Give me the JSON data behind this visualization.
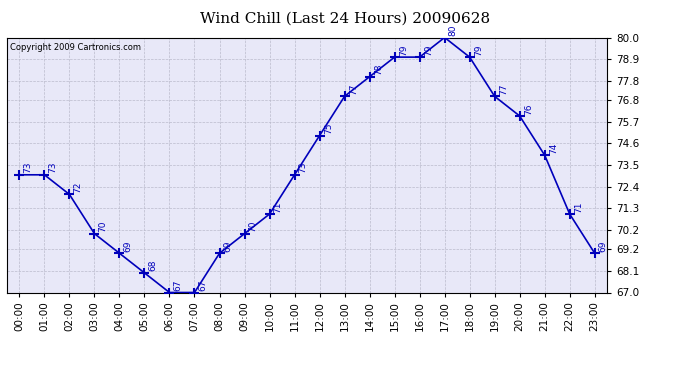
{
  "title": "Wind Chill (Last 24 Hours) 20090628",
  "copyright": "Copyright 2009 Cartronics.com",
  "hours": [
    "00:00",
    "01:00",
    "02:00",
    "03:00",
    "04:00",
    "05:00",
    "06:00",
    "07:00",
    "08:00",
    "09:00",
    "10:00",
    "11:00",
    "12:00",
    "13:00",
    "14:00",
    "15:00",
    "16:00",
    "17:00",
    "18:00",
    "19:00",
    "20:00",
    "21:00",
    "22:00",
    "23:00"
  ],
  "values": [
    73,
    73,
    72,
    70,
    69,
    68,
    67,
    67,
    69,
    70,
    71,
    73,
    75,
    77,
    78,
    79,
    79,
    80,
    79,
    77,
    76,
    74,
    71,
    69
  ],
  "ylim": [
    67.0,
    80.0
  ],
  "yticks": [
    67.0,
    68.1,
    69.2,
    70.2,
    71.3,
    72.4,
    73.5,
    74.6,
    75.7,
    76.8,
    77.8,
    78.9,
    80.0
  ],
  "line_color": "#0000bb",
  "marker": "+",
  "marker_color": "#0000bb",
  "bg_color": "#ffffff",
  "plot_bg_color": "#e8e8f8",
  "grid_color": "#bbbbcc",
  "title_fontsize": 11,
  "label_fontsize": 7.5,
  "annot_fontsize": 6.5
}
